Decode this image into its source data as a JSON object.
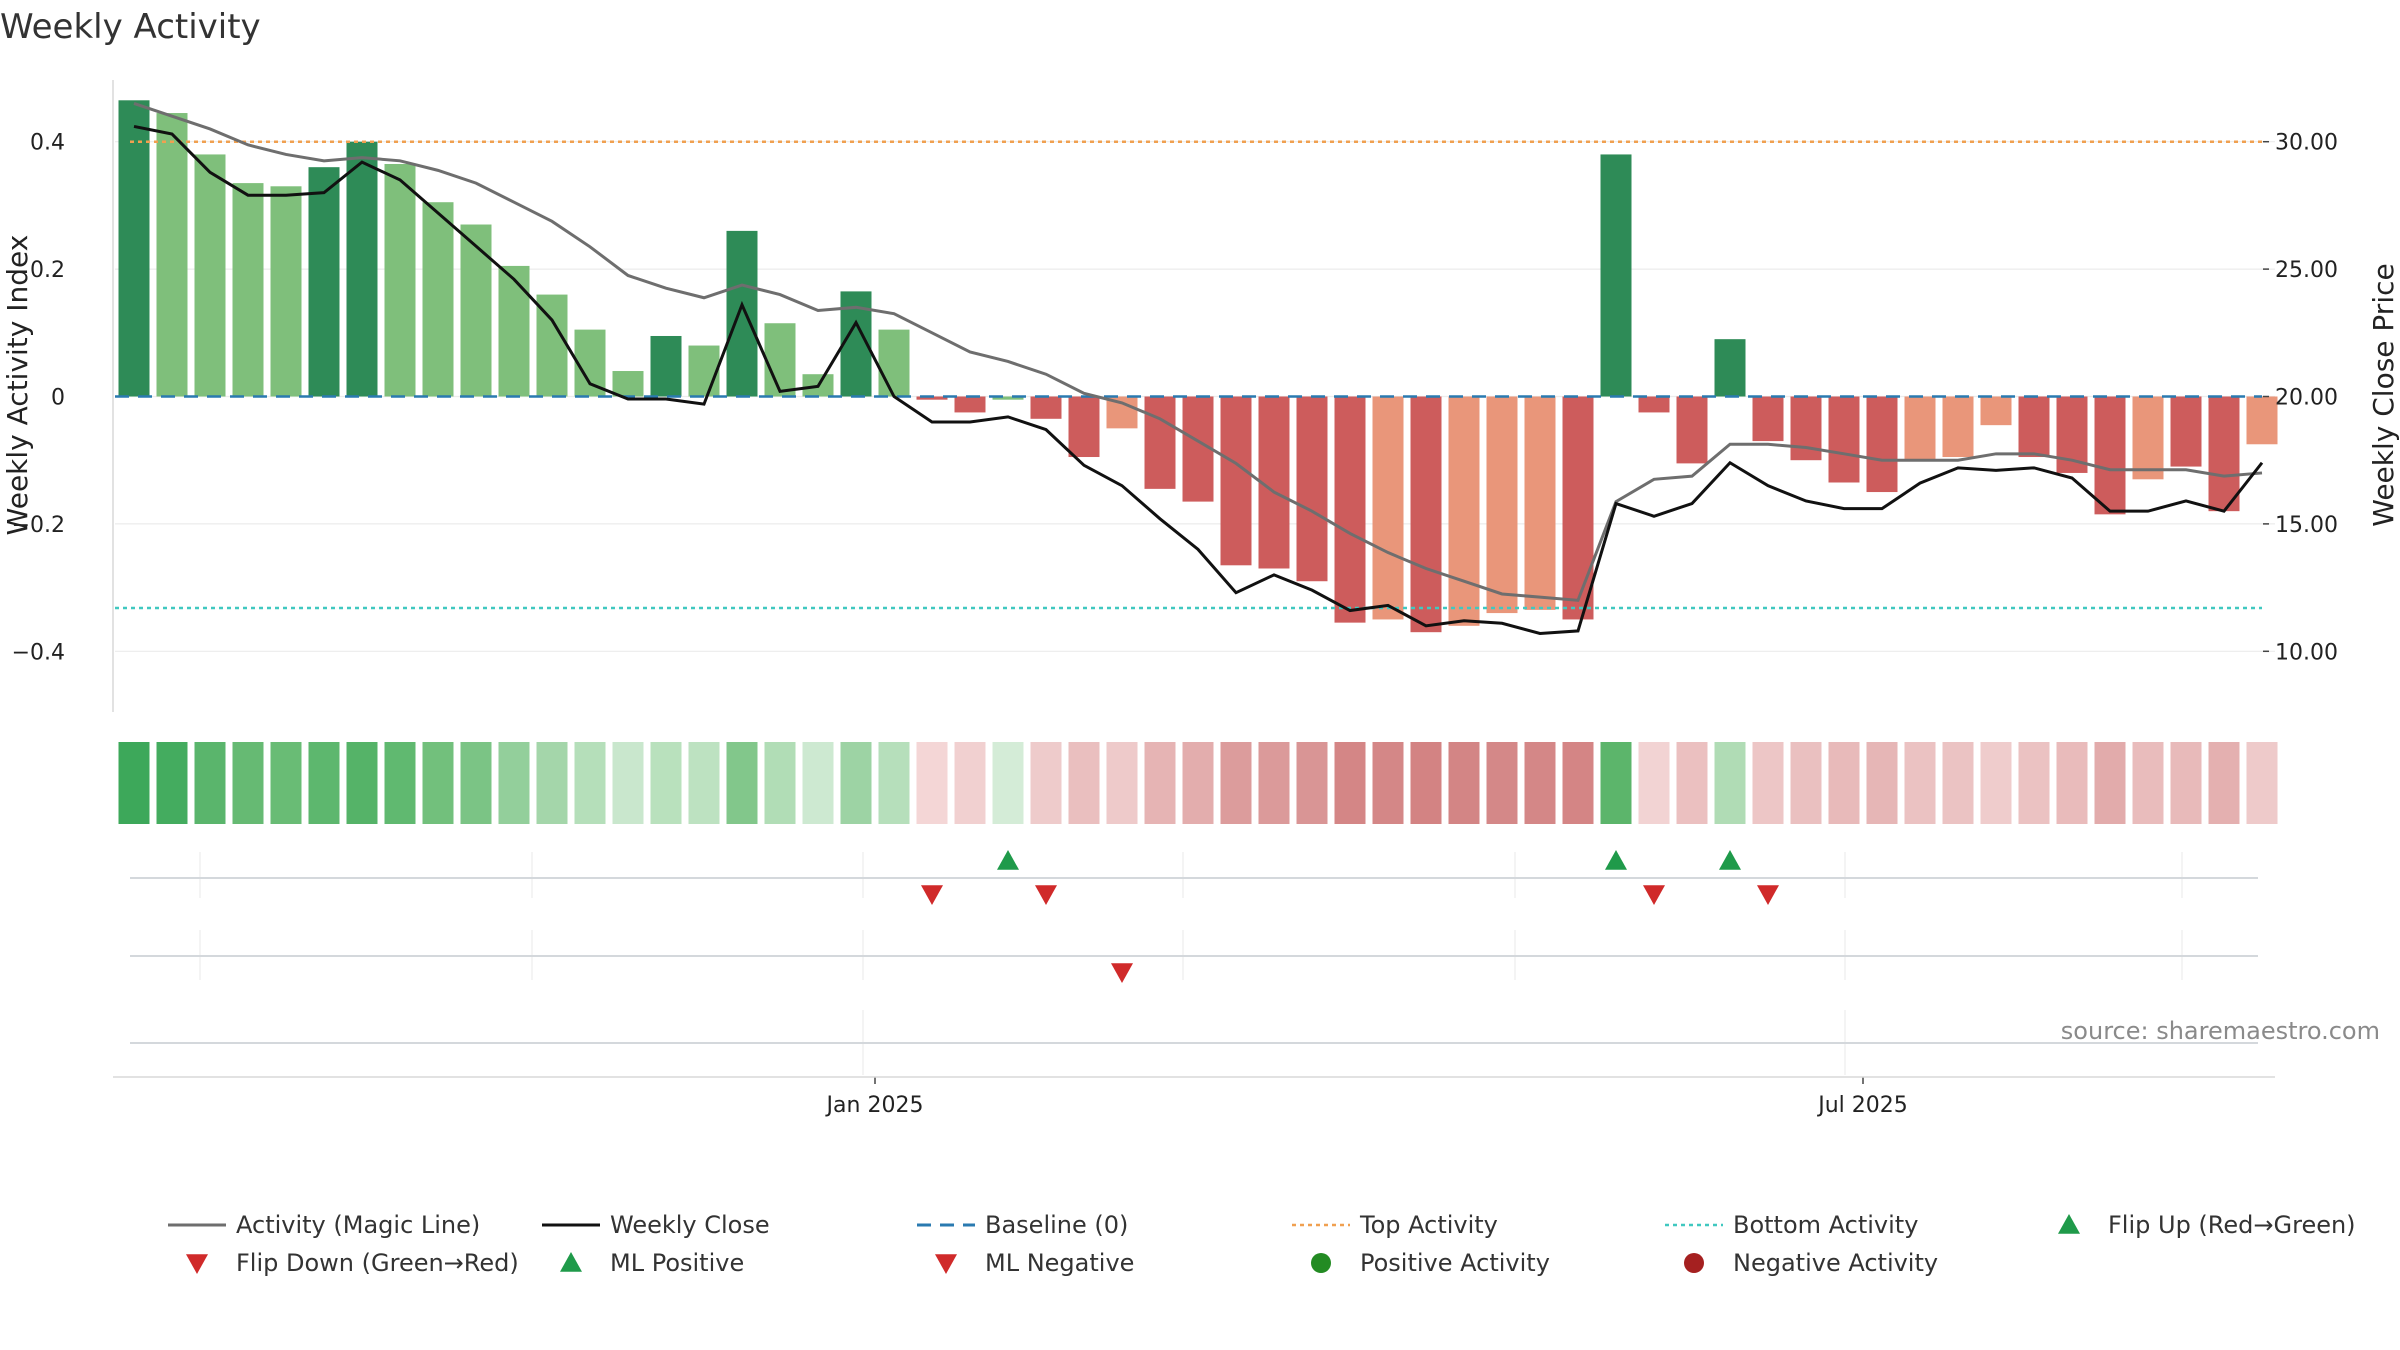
{
  "chart_data": {
    "type": "bar",
    "title": "Weekly Activity",
    "ylabel_left": "Weekly Activity Index",
    "ylabel_right": "Weekly Close Price",
    "ylim_left": [
      -0.5,
      0.5
    ],
    "ylim_right": [
      7.5,
      32.5
    ],
    "yticks_left": [
      {
        "v": 0.4,
        "label": "0.4"
      },
      {
        "v": 0.2,
        "label": "0.2"
      },
      {
        "v": 0,
        "label": "0"
      },
      {
        "v": -0.2,
        "label": "−0.2"
      },
      {
        "v": -0.4,
        "label": "−0.4"
      }
    ],
    "yticks_right": [
      {
        "v": 30,
        "label": "30.00"
      },
      {
        "v": 25,
        "label": "25.00"
      },
      {
        "v": 20,
        "label": "20.00"
      },
      {
        "v": 15,
        "label": "15.00"
      },
      {
        "v": 10,
        "label": "10.00"
      }
    ],
    "x_tick_labels": [
      {
        "index": 19.5,
        "label": "Jan 2025"
      },
      {
        "index": 45.5,
        "label": "Jul 2025"
      }
    ],
    "week_count": 57,
    "activity": [
      0.465,
      0.445,
      0.38,
      0.335,
      0.33,
      0.36,
      0.4,
      0.365,
      0.305,
      0.27,
      0.205,
      0.16,
      0.105,
      0.04,
      0.095,
      0.08,
      0.26,
      0.115,
      0.035,
      0.165,
      0.105,
      -0.005,
      -0.025,
      -0.005,
      -0.035,
      -0.095,
      -0.05,
      -0.145,
      -0.165,
      -0.265,
      -0.27,
      -0.29,
      -0.355,
      -0.35,
      -0.37,
      -0.36,
      -0.34,
      -0.335,
      -0.35,
      0.38,
      -0.025,
      -0.105,
      0.09,
      -0.07,
      -0.1,
      -0.135,
      -0.15,
      -0.1,
      -0.095,
      -0.045,
      -0.095,
      -0.12,
      -0.185,
      -0.13,
      -0.11,
      -0.18,
      -0.075
    ],
    "magic_line": [
      0.46,
      0.44,
      0.42,
      0.395,
      0.38,
      0.37,
      0.375,
      0.37,
      0.355,
      0.335,
      0.305,
      0.275,
      0.235,
      0.19,
      0.17,
      0.155,
      0.175,
      0.16,
      0.135,
      0.14,
      0.13,
      0.1,
      0.07,
      0.055,
      0.035,
      0.005,
      -0.01,
      -0.035,
      -0.07,
      -0.105,
      -0.15,
      -0.18,
      -0.215,
      -0.245,
      -0.27,
      -0.29,
      -0.31,
      -0.315,
      -0.32,
      -0.165,
      -0.13,
      -0.125,
      -0.075,
      -0.075,
      -0.08,
      -0.09,
      -0.1,
      -0.1,
      -0.1,
      -0.09,
      -0.09,
      -0.1,
      -0.115,
      -0.115,
      -0.115,
      -0.125,
      -0.12
    ],
    "weekly_close": [
      30.6,
      30.3,
      28.8,
      27.9,
      27.9,
      28.0,
      29.2,
      28.5,
      27.2,
      25.9,
      24.6,
      23.0,
      20.5,
      19.9,
      19.9,
      19.7,
      23.6,
      20.2,
      20.4,
      22.9,
      20.0,
      19.0,
      19.0,
      19.2,
      18.7,
      17.3,
      16.5,
      15.2,
      14.0,
      12.3,
      13.0,
      12.4,
      11.6,
      11.8,
      11.0,
      11.2,
      11.1,
      10.7,
      10.8,
      15.8,
      15.3,
      15.8,
      17.4,
      16.5,
      15.9,
      15.6,
      15.6,
      16.6,
      17.2,
      17.1,
      17.2,
      16.8,
      15.5,
      15.5,
      15.9,
      15.5,
      17.4
    ],
    "bar_colors": [
      "#2e8b57",
      "#7fbf7b",
      "#7fbf7b",
      "#7fbf7b",
      "#7fbf7b",
      "#2e8b57",
      "#2e8b57",
      "#7fbf7b",
      "#7fbf7b",
      "#7fbf7b",
      "#7fbf7b",
      "#7fbf7b",
      "#7fbf7b",
      "#7fbf7b",
      "#2e8b57",
      "#7fbf7b",
      "#2e8b57",
      "#7fbf7b",
      "#7fbf7b",
      "#2e8b57",
      "#7fbf7b",
      "#cd5c5c",
      "#cd5c5c",
      "#7fbf7b",
      "#cd5c5c",
      "#cd5c5c",
      "#e9967a",
      "#cd5c5c",
      "#cd5c5c",
      "#cd5c5c",
      "#cd5c5c",
      "#cd5c5c",
      "#cd5c5c",
      "#e9967a",
      "#cd5c5c",
      "#e9967a",
      "#e9967a",
      "#e9967a",
      "#cd5c5c",
      "#2e8b57",
      "#cd5c5c",
      "#cd5c5c",
      "#2e8b57",
      "#cd5c5c",
      "#cd5c5c",
      "#cd5c5c",
      "#cd5c5c",
      "#e9967a",
      "#e9967a",
      "#e9967a",
      "#cd5c5c",
      "#cd5c5c",
      "#cd5c5c",
      "#e9967a",
      "#cd5c5c",
      "#cd5c5c",
      "#e9967a"
    ],
    "heat_colors": [
      "#3da85a",
      "#44ac5f",
      "#5ab56c",
      "#66ba73",
      "#69bc75",
      "#5db76e",
      "#55b368",
      "#60b970",
      "#72c07c",
      "#7bc485",
      "#93cf9b",
      "#a4d6aa",
      "#b5dfba",
      "#c9e7cd",
      "#b9e1bd",
      "#bde2c1",
      "#82c78b",
      "#b1ddb6",
      "#cde9d1",
      "#9dd3a4",
      "#b6dfbb",
      "#f4d6d6",
      "#f1d0d0",
      "#d4ecd7",
      "#eecbcb",
      "#eabfbf",
      "#eecaca",
      "#e6b4b4",
      "#e3adad",
      "#dc9c9c",
      "#db9a9a",
      "#d99595",
      "#d48686",
      "#d48787",
      "#d38383",
      "#d38585",
      "#d48888",
      "#d48787",
      "#d48585",
      "#5cb56b",
      "#f2d3d3",
      "#ebc0c0",
      "#b0dcb5",
      "#edc6c6",
      "#eac0c0",
      "#e8baba",
      "#e6b6b6",
      "#ebc2c2",
      "#ebc3c3",
      "#efcccc",
      "#ebc2c2",
      "#e9bbbb",
      "#e2abab",
      "#e9bcbc",
      "#e8baba",
      "#e4b0b0",
      "#eecaca"
    ],
    "top_activity": 30.0,
    "bottom_activity": 11.7,
    "baseline": 0,
    "flip_up_indices": [
      23,
      39,
      42
    ],
    "flip_down_indices": [
      21,
      24,
      40,
      43
    ],
    "ml_negative_indices": [
      26
    ],
    "legend": [
      {
        "label": "Activity (Magic Line)",
        "kind": "line",
        "color": "#6e6e6e"
      },
      {
        "label": "Weekly Close",
        "kind": "line",
        "color": "#111111"
      },
      {
        "label": "Baseline (0)",
        "kind": "dash",
        "color": "#2a7ab0"
      },
      {
        "label": "Top Activity",
        "kind": "dot",
        "color": "#f0a050"
      },
      {
        "label": "Bottom Activity",
        "kind": "dot",
        "color": "#40c8c0"
      },
      {
        "label": "Flip Up (Red→Green)",
        "kind": "tri-up",
        "color": "#1f9a4a"
      },
      {
        "label": "Flip Down (Green→Red)",
        "kind": "tri-down",
        "color": "#d02a2a"
      },
      {
        "label": "ML Positive",
        "kind": "tri-up",
        "color": "#1f9a4a"
      },
      {
        "label": "ML Negative",
        "kind": "tri-down",
        "color": "#d02a2a"
      },
      {
        "label": "Positive Activity",
        "kind": "circle",
        "color": "#238b23"
      },
      {
        "label": "Negative Activity",
        "kind": "circle",
        "color": "#a52020"
      }
    ],
    "legend_position": "bottom",
    "grid": true,
    "source": "source: sharemaestro.com"
  }
}
